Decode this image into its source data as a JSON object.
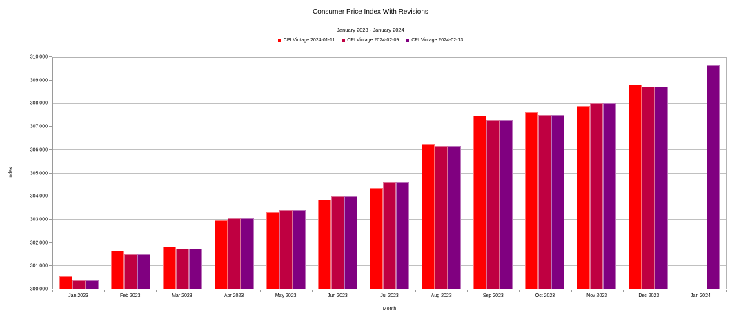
{
  "chart_data": {
    "type": "bar",
    "title": "Consumer Price Index With Revisions",
    "subtitle": "January 2023 - January 2024",
    "xlabel": "Month",
    "ylabel": "Index",
    "ylim": [
      300,
      310
    ],
    "ytick_step": 1,
    "ytick_decimals": 3,
    "grid": "horizontal",
    "legend_position": "top",
    "categories": [
      "Jan 2023",
      "Feb 2023",
      "Mar 2023",
      "Apr 2023",
      "May 2023",
      "Jun 2023",
      "Jul 2023",
      "Aug 2023",
      "Sep 2023",
      "Oct 2023",
      "Nov 2023",
      "Dec 2023",
      "Jan 2024"
    ],
    "series": [
      {
        "name": "CPI Vintage 2024-01-11",
        "color": "#ff0000",
        "values": [
          300.55,
          301.65,
          301.81,
          302.95,
          303.3,
          303.86,
          304.36,
          306.27,
          307.48,
          307.65,
          307.92,
          308.85,
          null
        ]
      },
      {
        "name": "CPI Vintage 2024-02-09",
        "color": "#bf0041",
        "values": [
          300.35,
          301.49,
          301.74,
          303.06,
          303.4,
          304.01,
          304.63,
          306.19,
          307.31,
          307.53,
          308.04,
          308.75,
          null
        ]
      },
      {
        "name": "CPI Vintage 2024-02-13",
        "color": "#800080",
        "values": [
          300.35,
          301.49,
          301.74,
          303.06,
          303.4,
          304.01,
          304.63,
          306.19,
          307.31,
          307.53,
          308.04,
          308.76,
          309.67
        ]
      }
    ],
    "colors": {
      "background": "#ffffff",
      "gridline": "#c0c0c0",
      "axis": "#9a9a9a",
      "plot_border": "#b3b3b3",
      "text": "#000000"
    }
  }
}
